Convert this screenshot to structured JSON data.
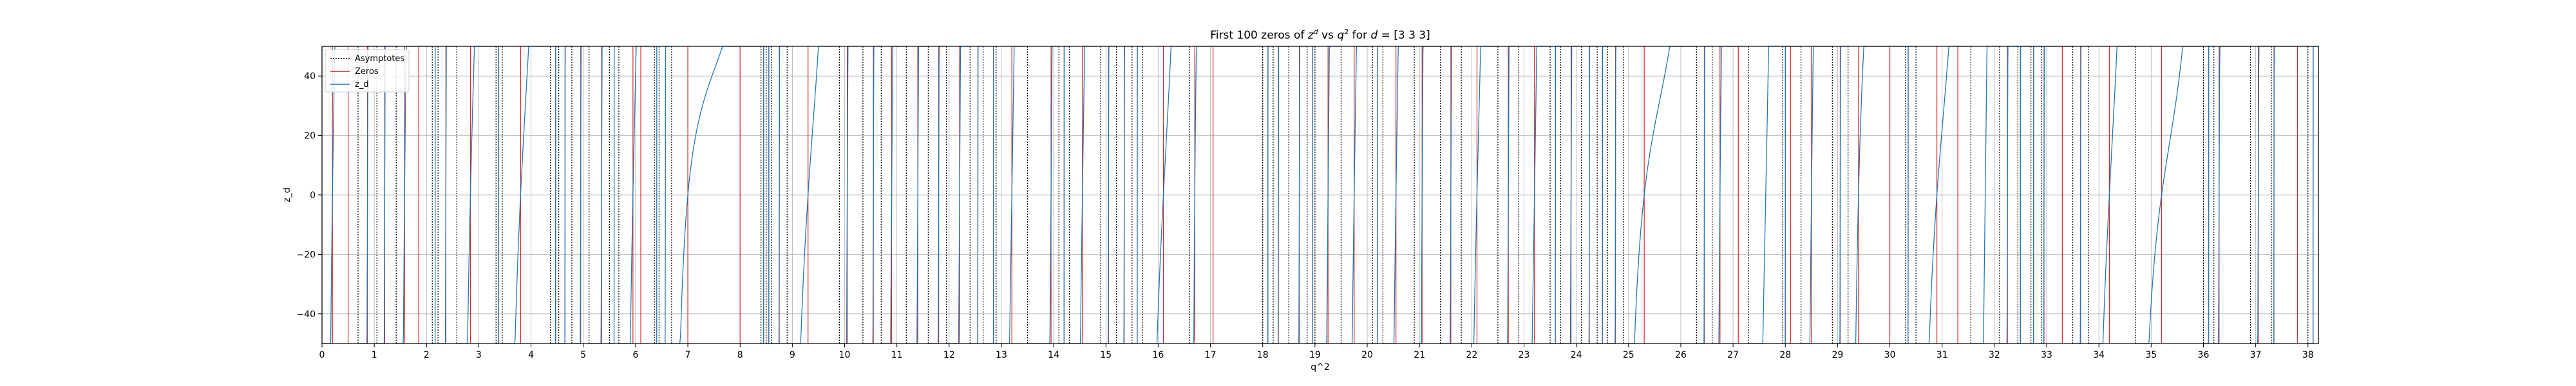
{
  "chart_data": {
    "type": "line",
    "title_main": "First 100 zeros of ",
    "title_z": "z",
    "title_z_sup": "d",
    "title_vs": " vs ",
    "title_q": "q",
    "title_q_sup": "2",
    "title_for": " for ",
    "title_d": "d",
    "title_tail": " = [3 3 3]",
    "xlabel": "q^2",
    "ylabel": "z_d",
    "xlim": [
      0,
      38.2
    ],
    "ylim": [
      -50,
      50
    ],
    "grid": true,
    "legend_position": "top-left",
    "xticks": [
      "0",
      "1",
      "2",
      "3",
      "4",
      "5",
      "6",
      "7",
      "8",
      "9",
      "10",
      "11",
      "12",
      "13",
      "14",
      "15",
      "16",
      "17",
      "18",
      "19",
      "20",
      "21",
      "22",
      "23",
      "24",
      "25",
      "26",
      "27",
      "28",
      "29",
      "30",
      "31",
      "32",
      "33",
      "34",
      "35",
      "36",
      "37",
      "38"
    ],
    "yticks": [
      "−40",
      "−20",
      "0",
      "20",
      "40"
    ],
    "ytick_values": [
      -40,
      -20,
      0,
      20,
      40
    ],
    "legend": [
      {
        "label": "Asymptotes",
        "style": "dotted",
        "color": "#000000"
      },
      {
        "label": "Zeros",
        "style": "solid",
        "color": "#d62728"
      },
      {
        "label": "z_d",
        "style": "solid",
        "color": "#1f77b4"
      }
    ],
    "asymptotes": [
      0.0,
      0.69,
      1.05,
      1.42,
      2.11,
      2.22,
      2.58,
      3.33,
      3.45,
      4.37,
      4.53,
      4.78,
      5.11,
      5.5,
      5.68,
      6.36,
      6.45,
      6.69,
      8.4,
      8.5,
      8.6,
      8.9,
      9.9,
      10.35,
      10.7,
      11.18,
      11.6,
      11.95,
      12.4,
      12.65,
      12.9,
      13.5,
      14.1,
      14.3,
      14.9,
      15.2,
      15.5,
      15.7,
      16.6,
      18.0,
      18.2,
      18.5,
      18.85,
      19.0,
      19.5,
      20.1,
      20.3,
      20.9,
      21.4,
      21.8,
      22.5,
      22.9,
      23.5,
      23.7,
      24.1,
      24.4,
      24.6,
      24.9,
      26.3,
      26.6,
      27.3,
      27.95,
      28.3,
      28.9,
      29.2,
      30.3,
      30.5,
      31.55,
      32.1,
      32.45,
      32.7,
      32.9,
      33.5,
      33.8,
      34.7,
      36.0,
      36.2,
      36.9,
      37.3,
      38.0,
      38.2
    ],
    "zeros": [
      0.2,
      0.5,
      0.87,
      1.2,
      1.58,
      1.85,
      2.37,
      2.84,
      3.38,
      3.8,
      4.47,
      4.65,
      4.95,
      5.35,
      5.95,
      6.1,
      7.0,
      8.0,
      8.45,
      8.55,
      8.75,
      9.3,
      10.05,
      10.55,
      10.9,
      11.4,
      11.8,
      12.2,
      12.55,
      12.85,
      13.2,
      13.95,
      14.2,
      14.55,
      15.05,
      15.35,
      15.6,
      16.1,
      16.7,
      17.05,
      18.1,
      18.3,
      18.7,
      18.95,
      19.25,
      19.75,
      20.2,
      20.55,
      21.05,
      21.6,
      22.1,
      22.7,
      23.2,
      23.6,
      23.9,
      24.25,
      24.5,
      24.75,
      25.3,
      26.45,
      26.75,
      27.1,
      28.0,
      28.1,
      28.5,
      29.05,
      29.4,
      30.0,
      30.35,
      30.9,
      31.3,
      32.25,
      32.5,
      32.75,
      32.95,
      33.3,
      33.65,
      34.2,
      35.2,
      36.1,
      36.3,
      37.05,
      37.35,
      37.8,
      38.1
    ]
  }
}
